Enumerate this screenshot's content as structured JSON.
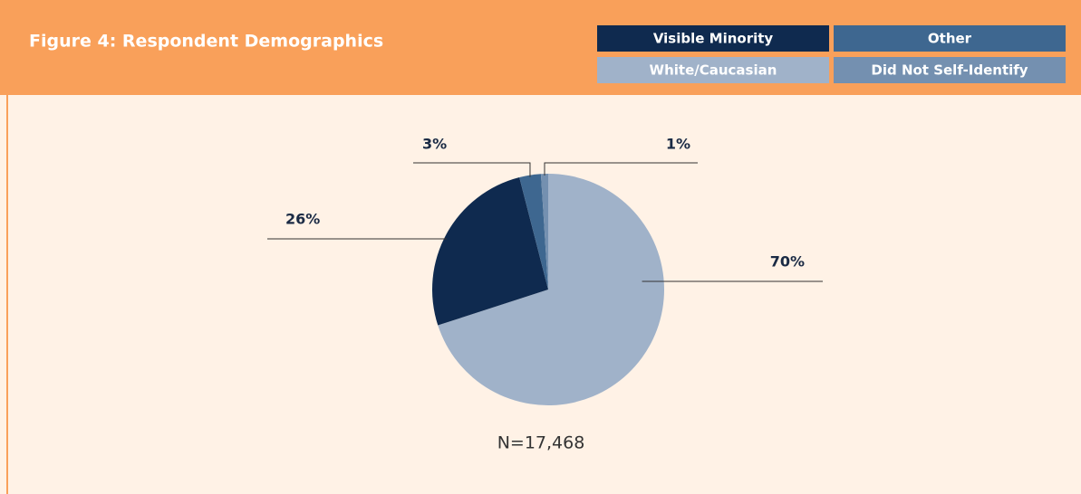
{
  "chart_data": {
    "type": "pie",
    "title": "Figure 4:  Respondent Demographics",
    "categories": [
      "White/Caucasian",
      "Visible Minority",
      "Other",
      "Did Not Self-Identify"
    ],
    "values": [
      70,
      26,
      3,
      1
    ],
    "value_labels": [
      "70%",
      "26%",
      "3%",
      "1%"
    ],
    "colors": [
      "#a0b2c9",
      "#0f2a4f",
      "#3e6790",
      "#7490b0"
    ],
    "note": "N=17,468"
  }
}
